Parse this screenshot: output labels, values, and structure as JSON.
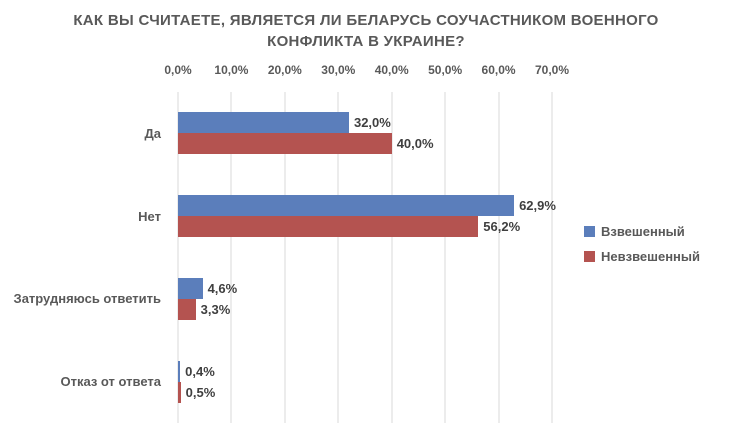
{
  "chart_data": {
    "type": "bar",
    "orientation": "horizontal",
    "title": "КАК ВЫ СЧИТАЕТЕ, ЯВЛЯЕТСЯ ЛИ БЕЛАРУСЬ СОУЧАСТНИКОМ ВОЕННОГО КОНФЛИКТА В УКРАИНЕ?",
    "categories": [
      "Да",
      "Нет",
      "Затрудняюсь ответить",
      "Отказ от ответа"
    ],
    "series": [
      {
        "name": "Взвешенный",
        "color": "#5b7ebb",
        "values": [
          32.0,
          62.9,
          4.6,
          0.4
        ],
        "labels": [
          "32,0%",
          "62,9%",
          "4,6%",
          "0,4%"
        ]
      },
      {
        "name": "Невзвешенный",
        "color": "#b45350",
        "values": [
          40.0,
          56.2,
          3.3,
          0.5
        ],
        "labels": [
          "40,0%",
          "56,2%",
          "3,3%",
          "0,5%"
        ]
      }
    ],
    "x_axis": {
      "min": 0,
      "max": 70,
      "tick_step": 10,
      "ticks": [
        "0,0%",
        "10,0%",
        "20,0%",
        "30,0%",
        "40,0%",
        "50,0%",
        "60,0%",
        "70,0%"
      ],
      "tick_position": "top"
    },
    "legend_position": "right",
    "grid": true
  },
  "colors": {
    "title_text": "#595959",
    "axis_text": "#595959",
    "category_text": "#595959",
    "value_label_text": "#3f3f3f",
    "gridline": "#d9d9d9",
    "background": "#ffffff",
    "series_weighted": "#5b7ebb",
    "series_unweighted": "#b45350"
  }
}
